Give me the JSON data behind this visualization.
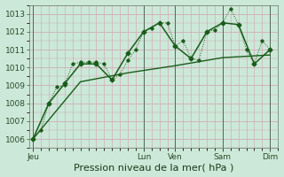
{
  "background_color": "#cce8d8",
  "grid_color": "#d4a0b0",
  "line_color": "#1a5c1a",
  "ylim": [
    1005.5,
    1013.5
  ],
  "yticks": [
    1006,
    1007,
    1008,
    1009,
    1010,
    1011,
    1012,
    1013
  ],
  "xlabel": "Pression niveau de la mer( hPa )",
  "xlabel_fontsize": 8,
  "tick_fontsize": 6.5,
  "day_labels": [
    "Jeu",
    "Lun",
    "Ven",
    "Sam",
    "Dim"
  ],
  "day_positions": [
    0,
    14,
    18,
    24,
    30
  ],
  "xlim": [
    -0.5,
    31
  ],
  "line1_x": [
    0,
    1,
    2,
    3,
    4,
    5,
    6,
    7,
    8,
    9,
    10,
    11,
    12,
    13,
    14,
    15,
    16,
    17,
    18,
    19,
    20,
    21,
    22,
    23,
    24,
    25,
    26,
    27,
    28,
    29,
    30
  ],
  "line1_y": [
    1006.0,
    1006.5,
    1008.0,
    1008.9,
    1009.0,
    1010.2,
    1010.3,
    1010.3,
    1010.3,
    1010.2,
    1009.3,
    1009.6,
    1010.4,
    1011.0,
    1012.0,
    1012.2,
    1012.5,
    1012.5,
    1011.2,
    1011.5,
    1010.5,
    1010.4,
    1012.0,
    1012.1,
    1012.5,
    1013.3,
    1012.4,
    1011.0,
    1010.2,
    1011.5,
    1011.0
  ],
  "line2_x": [
    0,
    2,
    4,
    6,
    8,
    10,
    12,
    14,
    16,
    18,
    20,
    22,
    24,
    26,
    28,
    30
  ],
  "line2_y": [
    1006.0,
    1008.0,
    1009.1,
    1010.2,
    1010.2,
    1009.3,
    1010.8,
    1012.0,
    1012.5,
    1011.2,
    1010.5,
    1012.0,
    1012.5,
    1012.4,
    1010.2,
    1011.0
  ],
  "line3_x": [
    0,
    6,
    12,
    18,
    24,
    30
  ],
  "line3_y": [
    1006.0,
    1009.2,
    1009.7,
    1010.1,
    1010.55,
    1010.7
  ],
  "minor_xtick_count": 30,
  "vline_positions": [
    0,
    14,
    18,
    24,
    30
  ]
}
